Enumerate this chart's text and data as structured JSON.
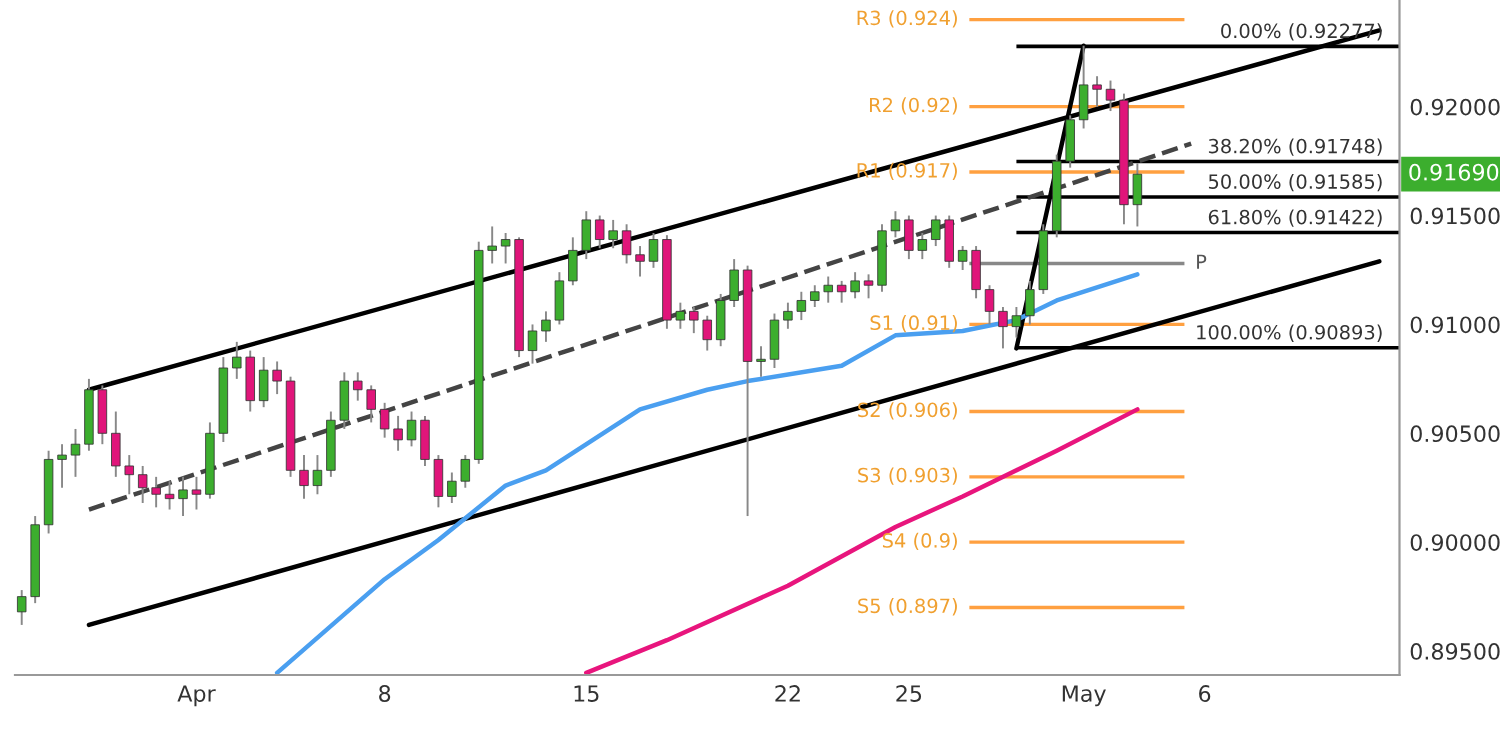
{
  "chart_data": {
    "type": "candlestick",
    "categories": [
      null,
      null,
      null,
      null,
      null,
      null,
      null,
      null,
      null,
      null,
      null,
      null,
      null,
      "Apr",
      null,
      null,
      null,
      null,
      null,
      null,
      null,
      null,
      null,
      null,
      null,
      null,
      null,
      "8",
      null,
      null,
      null,
      null,
      null,
      null,
      null,
      null,
      null,
      null,
      null,
      null,
      null,
      null,
      "15",
      null,
      null,
      null,
      null,
      null,
      null,
      null,
      null,
      null,
      null,
      null,
      null,
      null,
      null,
      "22",
      null,
      null,
      null,
      null,
      null,
      null,
      null,
      null,
      "25",
      null,
      null,
      null,
      null,
      null,
      null,
      null,
      null,
      null,
      null,
      null,
      null,
      "May",
      null,
      null,
      null,
      null,
      null,
      null,
      null,
      null,
      "6",
      null,
      null,
      null,
      null,
      null,
      null,
      null,
      null,
      null,
      null,
      null,
      null,
      null,
      null
    ],
    "ohlc": [
      [
        0.8968,
        0.8978,
        0.8962,
        0.8975
      ],
      [
        0.8975,
        0.9012,
        0.8972,
        0.9008
      ],
      [
        0.9008,
        0.9042,
        0.9004,
        0.9038
      ],
      [
        0.9038,
        0.9045,
        0.9025,
        0.904
      ],
      [
        0.904,
        0.9052,
        0.903,
        0.9045
      ],
      [
        0.9045,
        0.9075,
        0.9042,
        0.907
      ],
      [
        0.907,
        0.9072,
        0.9045,
        0.905
      ],
      [
        0.905,
        0.906,
        0.903,
        0.9035
      ],
      [
        0.9035,
        0.904,
        0.9022,
        0.9031
      ],
      [
        0.9031,
        0.9035,
        0.9018,
        0.9025
      ],
      [
        0.9025,
        0.903,
        0.9016,
        0.9022
      ],
      [
        0.9022,
        0.9028,
        0.9015,
        0.902
      ],
      [
        0.902,
        0.903,
        0.9012,
        0.9024
      ],
      [
        0.9024,
        0.903,
        0.9015,
        0.9022
      ],
      [
        0.9022,
        0.9055,
        0.902,
        0.905
      ],
      [
        0.905,
        0.9085,
        0.9046,
        0.908
      ],
      [
        0.908,
        0.9092,
        0.9075,
        0.9085
      ],
      [
        0.9085,
        0.9088,
        0.906,
        0.9065
      ],
      [
        0.9065,
        0.9085,
        0.9062,
        0.9079
      ],
      [
        0.9079,
        0.9083,
        0.9068,
        0.9074
      ],
      [
        0.9074,
        0.9076,
        0.903,
        0.9033
      ],
      [
        0.9033,
        0.904,
        0.902,
        0.9026
      ],
      [
        0.9026,
        0.904,
        0.9022,
        0.9033
      ],
      [
        0.9033,
        0.906,
        0.903,
        0.9056
      ],
      [
        0.9056,
        0.9078,
        0.9052,
        0.9074
      ],
      [
        0.9074,
        0.9078,
        0.9065,
        0.907
      ],
      [
        0.907,
        0.9072,
        0.9055,
        0.9061
      ],
      [
        0.9061,
        0.9064,
        0.9048,
        0.9052
      ],
      [
        0.9052,
        0.9058,
        0.9042,
        0.9047
      ],
      [
        0.9047,
        0.906,
        0.9044,
        0.9056
      ],
      [
        0.9056,
        0.9058,
        0.9035,
        0.9038
      ],
      [
        0.9038,
        0.904,
        0.9016,
        0.9021
      ],
      [
        0.9021,
        0.9032,
        0.9018,
        0.9028
      ],
      [
        0.9028,
        0.904,
        0.9025,
        0.9038
      ],
      [
        0.9038,
        0.9138,
        0.9036,
        0.9134
      ],
      [
        0.9134,
        0.9145,
        0.9128,
        0.9136
      ],
      [
        0.9136,
        0.9142,
        0.9128,
        0.9139
      ],
      [
        0.9139,
        0.914,
        0.9085,
        0.9088
      ],
      [
        0.9088,
        0.91,
        0.9082,
        0.9097
      ],
      [
        0.9097,
        0.9106,
        0.9092,
        0.9102
      ],
      [
        0.9102,
        0.9124,
        0.91,
        0.912
      ],
      [
        0.912,
        0.914,
        0.9118,
        0.9134
      ],
      [
        0.9134,
        0.9152,
        0.913,
        0.9148
      ],
      [
        0.9148,
        0.915,
        0.9135,
        0.9139
      ],
      [
        0.9139,
        0.9148,
        0.9135,
        0.9143
      ],
      [
        0.9143,
        0.9146,
        0.9128,
        0.9132
      ],
      [
        0.9132,
        0.9136,
        0.9122,
        0.9129
      ],
      [
        0.9129,
        0.9142,
        0.9126,
        0.9139
      ],
      [
        0.9139,
        0.9141,
        0.9098,
        0.9102
      ],
      [
        0.9102,
        0.911,
        0.9098,
        0.9106
      ],
      [
        0.9106,
        0.9108,
        0.9096,
        0.9102
      ],
      [
        0.9102,
        0.9104,
        0.9088,
        0.9093
      ],
      [
        0.9093,
        0.9114,
        0.909,
        0.9111
      ],
      [
        0.9111,
        0.913,
        0.9108,
        0.9125
      ],
      [
        0.9125,
        0.9127,
        0.9012,
        0.9083
      ],
      [
        0.9083,
        0.909,
        0.9076,
        0.9084
      ],
      [
        0.9084,
        0.9105,
        0.908,
        0.9102
      ],
      [
        0.9102,
        0.911,
        0.9098,
        0.9106
      ],
      [
        0.9106,
        0.9115,
        0.9102,
        0.9111
      ],
      [
        0.9111,
        0.9118,
        0.9108,
        0.9115
      ],
      [
        0.9115,
        0.9122,
        0.911,
        0.9118
      ],
      [
        0.9118,
        0.912,
        0.911,
        0.9115
      ],
      [
        0.9115,
        0.9124,
        0.9112,
        0.912
      ],
      [
        0.912,
        0.9123,
        0.9112,
        0.9118
      ],
      [
        0.9118,
        0.9146,
        0.9115,
        0.9143
      ],
      [
        0.9143,
        0.9152,
        0.914,
        0.9148
      ],
      [
        0.9148,
        0.915,
        0.913,
        0.9134
      ],
      [
        0.9134,
        0.9142,
        0.913,
        0.9139
      ],
      [
        0.9139,
        0.915,
        0.9136,
        0.9148
      ],
      [
        0.9148,
        0.915,
        0.9126,
        0.9129
      ],
      [
        0.9129,
        0.9136,
        0.9125,
        0.9134
      ],
      [
        0.9134,
        0.9136,
        0.9112,
        0.9116
      ],
      [
        0.9116,
        0.9118,
        0.91,
        0.9106
      ],
      [
        0.9106,
        0.9108,
        0.9089,
        0.9099
      ],
      [
        0.9099,
        0.9108,
        0.9094,
        0.9104
      ],
      [
        0.9104,
        0.912,
        0.91,
        0.9116
      ],
      [
        0.9116,
        0.9146,
        0.9114,
        0.9143
      ],
      [
        0.9143,
        0.9178,
        0.914,
        0.9175
      ],
      [
        0.9175,
        0.9196,
        0.9172,
        0.9194
      ],
      [
        0.9194,
        0.9228,
        0.919,
        0.921
      ],
      [
        0.921,
        0.9214,
        0.92,
        0.9208
      ],
      [
        0.9208,
        0.9212,
        0.9198,
        0.9203
      ],
      [
        0.9203,
        0.9206,
        0.9146,
        0.9155
      ],
      [
        0.9155,
        0.9174,
        0.9145,
        0.9169
      ],
      null,
      null,
      null,
      null,
      null,
      null,
      null,
      null,
      null,
      null,
      null,
      null,
      null,
      null,
      null,
      null,
      null,
      null,
      null
    ],
    "colors": [
      "#3cae2e",
      "#3cae2e",
      "#3cae2e",
      "#3cae2e",
      "#3cae2e",
      "#3cae2e",
      "#e0157a",
      "#e0157a",
      "#e0157a",
      "#e0157a",
      "#e0157a",
      "#e0157a",
      "#3cae2e",
      "#e0157a",
      "#3cae2e",
      "#3cae2e",
      "#3cae2e",
      "#e0157a",
      "#3cae2e",
      "#e0157a",
      "#e0157a",
      "#e0157a",
      "#3cae2e",
      "#3cae2e",
      "#3cae2e",
      "#e0157a",
      "#e0157a",
      "#e0157a",
      "#e0157a",
      "#3cae2e",
      "#e0157a",
      "#e0157a",
      "#3cae2e",
      "#3cae2e",
      "#3cae2e",
      "#3cae2e",
      "#3cae2e",
      "#e0157a",
      "#3cae2e",
      "#3cae2e",
      "#3cae2e",
      "#3cae2e",
      "#3cae2e",
      "#e0157a",
      "#3cae2e",
      "#e0157a",
      "#e0157a",
      "#3cae2e",
      "#e0157a",
      "#3cae2e",
      "#e0157a",
      "#e0157a",
      "#3cae2e",
      "#3cae2e",
      "#e0157a",
      "#3cae2e",
      "#3cae2e",
      "#3cae2e",
      "#3cae2e",
      "#3cae2e",
      "#3cae2e",
      "#e0157a",
      "#3cae2e",
      "#e0157a",
      "#3cae2e",
      "#3cae2e",
      "#e0157a",
      "#3cae2e",
      "#3cae2e",
      "#e0157a",
      "#3cae2e",
      "#e0157a",
      "#e0157a",
      "#e0157a",
      "#3cae2e",
      "#3cae2e",
      "#3cae2e",
      "#3cae2e",
      "#3cae2e",
      "#3cae2e",
      "#e0157a",
      "#e0157a",
      "#e0157a",
      "#3cae2e",
      null,
      null,
      null,
      null,
      null,
      null,
      null,
      null,
      null,
      null,
      null,
      null,
      null,
      null,
      null,
      null,
      null,
      null,
      null
    ],
    "series": [
      {
        "type": "line",
        "color": "#000000",
        "values": [
          null,
          null,
          null,
          null,
          null,
          0.907,
          null,
          null,
          null,
          null,
          null,
          null,
          null,
          null,
          null,
          null,
          null,
          null,
          null,
          null,
          null,
          null,
          null,
          null,
          null,
          null,
          null,
          null,
          null,
          null,
          null,
          null,
          null,
          null,
          null,
          null,
          null,
          null,
          null,
          null,
          null,
          null,
          null,
          null,
          null,
          null,
          null,
          null,
          null,
          null,
          null,
          null,
          null,
          null,
          null,
          null,
          null,
          null,
          null,
          null,
          null,
          null,
          null,
          null,
          null,
          null,
          null,
          null,
          null,
          null,
          null,
          null,
          null,
          null,
          null,
          null,
          null,
          null,
          null,
          null,
          null,
          null,
          null,
          null,
          null,
          null,
          null,
          null,
          null,
          null,
          null,
          null,
          null,
          null,
          null,
          null,
          null,
          null,
          null,
          null,
          null,
          0.9235,
          null
        ]
      },
      {
        "type": "line",
        "color": "#000000",
        "values": [
          null,
          null,
          null,
          null,
          null,
          0.8962,
          null,
          null,
          null,
          null,
          null,
          null,
          null,
          null,
          null,
          null,
          null,
          null,
          null,
          null,
          null,
          null,
          null,
          null,
          null,
          null,
          null,
          null,
          null,
          null,
          null,
          null,
          null,
          null,
          null,
          null,
          null,
          null,
          null,
          null,
          null,
          null,
          null,
          null,
          null,
          null,
          null,
          null,
          null,
          null,
          null,
          null,
          null,
          null,
          null,
          null,
          null,
          null,
          null,
          null,
          null,
          null,
          null,
          null,
          null,
          null,
          null,
          null,
          null,
          null,
          null,
          null,
          null,
          null,
          null,
          null,
          null,
          null,
          null,
          null,
          null,
          null,
          null,
          null,
          null,
          null,
          null,
          null,
          null,
          null,
          null,
          null,
          null,
          null,
          null,
          null,
          null,
          null,
          null,
          null,
          null,
          0.9129,
          null
        ]
      },
      {
        "type": "line",
        "color": "#444444",
        "line_style": "dashed",
        "values": [
          null,
          null,
          null,
          null,
          null,
          0.9015,
          null,
          null,
          null,
          null,
          null,
          null,
          null,
          null,
          null,
          null,
          null,
          null,
          null,
          null,
          null,
          null,
          null,
          null,
          null,
          null,
          null,
          null,
          null,
          null,
          null,
          null,
          null,
          null,
          null,
          null,
          null,
          null,
          null,
          null,
          null,
          null,
          null,
          null,
          null,
          null,
          null,
          null,
          null,
          null,
          null,
          null,
          null,
          null,
          null,
          null,
          null,
          null,
          null,
          null,
          null,
          null,
          null,
          null,
          null,
          null,
          null,
          null,
          null,
          null,
          null,
          null,
          null,
          null,
          null,
          null,
          null,
          null,
          null,
          null,
          null,
          null,
          null,
          null,
          null,
          null,
          null,
          0.9183,
          null,
          null,
          null,
          null,
          null,
          null,
          null,
          null,
          null,
          null,
          null,
          null,
          null,
          null,
          null
        ]
      },
      {
        "type": "line",
        "color": "#000000",
        "values": [
          null,
          null,
          null,
          null,
          null,
          null,
          null,
          null,
          null,
          null,
          null,
          null,
          null,
          null,
          null,
          null,
          null,
          null,
          null,
          null,
          null,
          null,
          null,
          null,
          null,
          null,
          null,
          null,
          null,
          null,
          null,
          null,
          null,
          null,
          null,
          null,
          null,
          null,
          null,
          null,
          null,
          null,
          null,
          null,
          null,
          null,
          null,
          null,
          null,
          null,
          null,
          null,
          null,
          null,
          null,
          null,
          null,
          null,
          null,
          null,
          null,
          null,
          null,
          null,
          null,
          null,
          null,
          null,
          null,
          null,
          null,
          null,
          null,
          null,
          0.9089,
          null,
          null,
          null,
          null,
          0.9228,
          null,
          null,
          null,
          null,
          null,
          null,
          null,
          null,
          null,
          null,
          null,
          null,
          null,
          null,
          null,
          null,
          null,
          null,
          null,
          null,
          null,
          null,
          null
        ]
      },
      {
        "type": "line",
        "color": "#4a9ff0",
        "values": [
          null,
          null,
          null,
          null,
          null,
          null,
          null,
          null,
          null,
          null,
          null,
          null,
          null,
          null,
          null,
          null,
          null,
          null,
          null,
          0.894,
          null,
          null,
          null,
          null,
          null,
          null,
          null,
          0.8983,
          null,
          null,
          null,
          0.9001,
          null,
          null,
          null,
          null,
          0.9026,
          null,
          null,
          0.9033,
          null,
          null,
          null,
          null,
          null,
          null,
          0.9061,
          null,
          null,
          null,
          null,
          0.907,
          null,
          null,
          0.9074,
          null,
          null,
          null,
          null,
          null,
          null,
          0.9081,
          null,
          null,
          null,
          0.9095,
          null,
          null,
          null,
          null,
          0.9097,
          null,
          null,
          null,
          0.9102,
          null,
          null,
          0.9111,
          null,
          null,
          null,
          null,
          null,
          0.9123,
          null,
          null,
          null,
          null,
          null,
          null,
          null,
          null,
          null,
          null,
          null,
          null,
          null,
          null,
          null,
          null,
          null,
          null,
          null
        ]
      },
      {
        "type": "line",
        "color": "#e8157d",
        "values": [
          null,
          null,
          null,
          null,
          null,
          null,
          null,
          null,
          null,
          null,
          null,
          null,
          null,
          null,
          null,
          null,
          null,
          null,
          null,
          null,
          null,
          null,
          null,
          null,
          null,
          null,
          null,
          null,
          null,
          null,
          null,
          null,
          null,
          null,
          null,
          null,
          null,
          null,
          null,
          null,
          null,
          null,
          0.894,
          null,
          null,
          null,
          null,
          null,
          0.8955,
          null,
          null,
          null,
          null,
          null,
          null,
          null,
          null,
          0.898,
          null,
          null,
          null,
          null,
          null,
          null,
          null,
          0.9007,
          null,
          null,
          null,
          null,
          0.9021,
          null,
          null,
          null,
          null,
          null,
          null,
          0.9042,
          null,
          null,
          null,
          null,
          null,
          0.9061,
          null,
          null,
          null,
          null,
          null,
          null,
          null,
          null,
          null,
          null,
          null,
          null,
          null,
          null,
          null,
          null,
          null,
          null,
          null
        ]
      }
    ],
    "ref_lines": [
      {
        "axis": "y",
        "value": 0.924,
        "label": "R3 (0.924)",
        "color": "#ffa040"
      },
      {
        "axis": "y",
        "value": 0.92,
        "label": "R2 (0.92)",
        "color": "#ffa040"
      },
      {
        "axis": "y",
        "value": 0.917,
        "label": "R1 (0.917)",
        "color": "#ffa040"
      },
      {
        "axis": "y",
        "value": 0.9128,
        "label": "P",
        "color": "#888888"
      },
      {
        "axis": "y",
        "value": 0.91,
        "label": "S1 (0.91)",
        "color": "#ffa040"
      },
      {
        "axis": "y",
        "value": 0.906,
        "label": "S2 (0.906)",
        "color": "#ffa040"
      },
      {
        "axis": "y",
        "value": 0.903,
        "label": "S3 (0.903)",
        "color": "#ffa040"
      },
      {
        "axis": "y",
        "value": 0.9,
        "label": "S4 (0.9)",
        "color": "#ffa040"
      },
      {
        "axis": "y",
        "value": 0.897,
        "label": "S5 (0.897)",
        "color": "#ffa040"
      },
      {
        "axis": "y",
        "value": 0.92277,
        "label": "0.00% (0.92277)",
        "color": "#000000"
      },
      {
        "axis": "y",
        "value": 0.91748,
        "label": "38.20% (0.91748)",
        "color": "#000000"
      },
      {
        "axis": "y",
        "value": 0.91585,
        "label": "50.00% (0.91585)",
        "color": "#000000"
      },
      {
        "axis": "y",
        "value": 0.91422,
        "label": "61.80% (0.91422)",
        "color": "#000000"
      },
      {
        "axis": "y",
        "value": 0.90893,
        "label": "100.00% (0.90893)",
        "color": "#000000"
      }
    ],
    "annotations": [
      "0.91690"
    ],
    "ylim": [
      0.8939,
      0.9249
    ],
    "yticks": [
      {
        "value": 0.895,
        "label": "0.89500"
      },
      {
        "value": 0.9,
        "label": "0.90000"
      },
      {
        "value": 0.905,
        "label": "0.90500"
      },
      {
        "value": 0.91,
        "label": "0.91000"
      },
      {
        "value": 0.915,
        "label": "0.91500"
      },
      {
        "value": 0.92,
        "label": "0.92000"
      }
    ]
  }
}
